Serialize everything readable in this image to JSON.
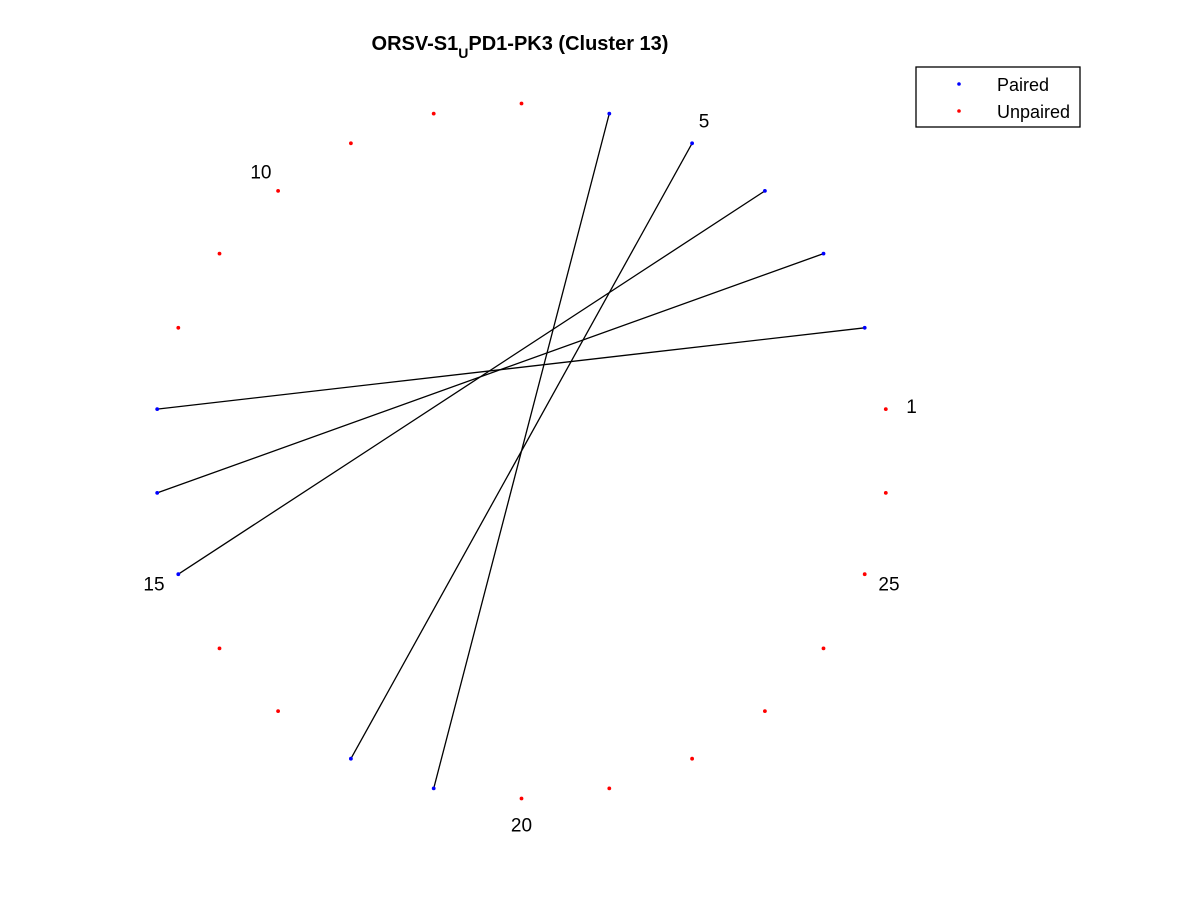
{
  "title": {
    "prefix": "ORSV-S1",
    "subscript": "U",
    "suffix": "PD1-PK3 (Cluster 13)"
  },
  "legend": {
    "placement": "top-right",
    "entries": [
      {
        "label": "Paired",
        "color": "#0000ff"
      },
      {
        "label": "Unpaired",
        "color": "#ff0000"
      }
    ]
  },
  "colors": {
    "paired": "#0000ff",
    "unpaired": "#ff0000",
    "line": "#000000"
  },
  "nodes": {
    "count": 26,
    "labels": [
      {
        "index": 1,
        "text": "1"
      },
      {
        "index": 5,
        "text": "5"
      },
      {
        "index": 10,
        "text": "10"
      },
      {
        "index": 15,
        "text": "15"
      },
      {
        "index": 20,
        "text": "20"
      },
      {
        "index": 25,
        "text": "25"
      }
    ]
  },
  "pairs": [
    [
      2,
      13
    ],
    [
      3,
      14
    ],
    [
      4,
      15
    ],
    [
      5,
      18
    ],
    [
      6,
      19
    ]
  ],
  "chart_data": {
    "type": "circle-plot",
    "nodes": 26,
    "pairs": [
      [
        2,
        13
      ],
      [
        3,
        14
      ],
      [
        4,
        15
      ],
      [
        5,
        18
      ],
      [
        6,
        19
      ]
    ],
    "paired_nodes": [
      2,
      3,
      4,
      5,
      6,
      13,
      14,
      15,
      18,
      19
    ],
    "unpaired_nodes": [
      1,
      7,
      8,
      9,
      10,
      11,
      12,
      16,
      17,
      20,
      21,
      22,
      23,
      24,
      25,
      26
    ],
    "node_labels": [
      "1",
      "5",
      "10",
      "15",
      "20",
      "25"
    ],
    "legend": [
      "Paired",
      "Unpaired"
    ]
  }
}
